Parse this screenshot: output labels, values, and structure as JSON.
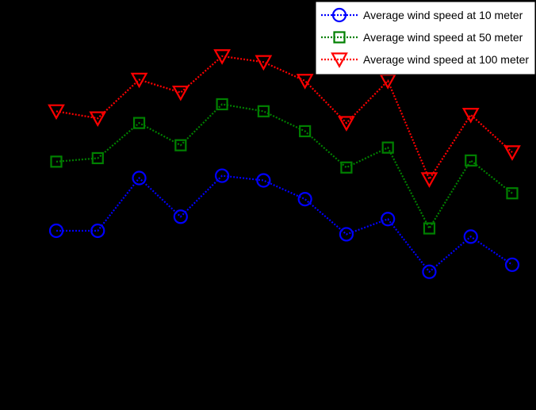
{
  "chart_data": {
    "type": "line",
    "x": [
      1,
      2,
      3,
      4,
      5,
      6,
      7,
      8,
      9,
      10,
      11,
      12
    ],
    "series": [
      {
        "name": "Average wind speed at 10 meter",
        "color": "#0000ff",
        "marker": "circle",
        "values": [
          3.53,
          3.53,
          3.98,
          3.65,
          4.0,
          3.96,
          3.8,
          3.5,
          3.63,
          3.18,
          3.48,
          3.24
        ]
      },
      {
        "name": "Average wind speed at 50 meter",
        "color": "#008000",
        "marker": "square",
        "values": [
          4.12,
          4.15,
          4.45,
          4.26,
          4.61,
          4.55,
          4.38,
          4.07,
          4.24,
          3.55,
          4.13,
          3.85
        ]
      },
      {
        "name": "Average wind speed at 100 meter",
        "color": "#ff0000",
        "marker": "triangle-down",
        "values": [
          4.55,
          4.49,
          4.82,
          4.71,
          5.02,
          4.97,
          4.81,
          4.45,
          4.81,
          3.97,
          4.52,
          4.2
        ]
      }
    ],
    "ylim": [
      2.0,
      5.5
    ],
    "grid": false,
    "legend": "top-right",
    "background": "#000000"
  }
}
